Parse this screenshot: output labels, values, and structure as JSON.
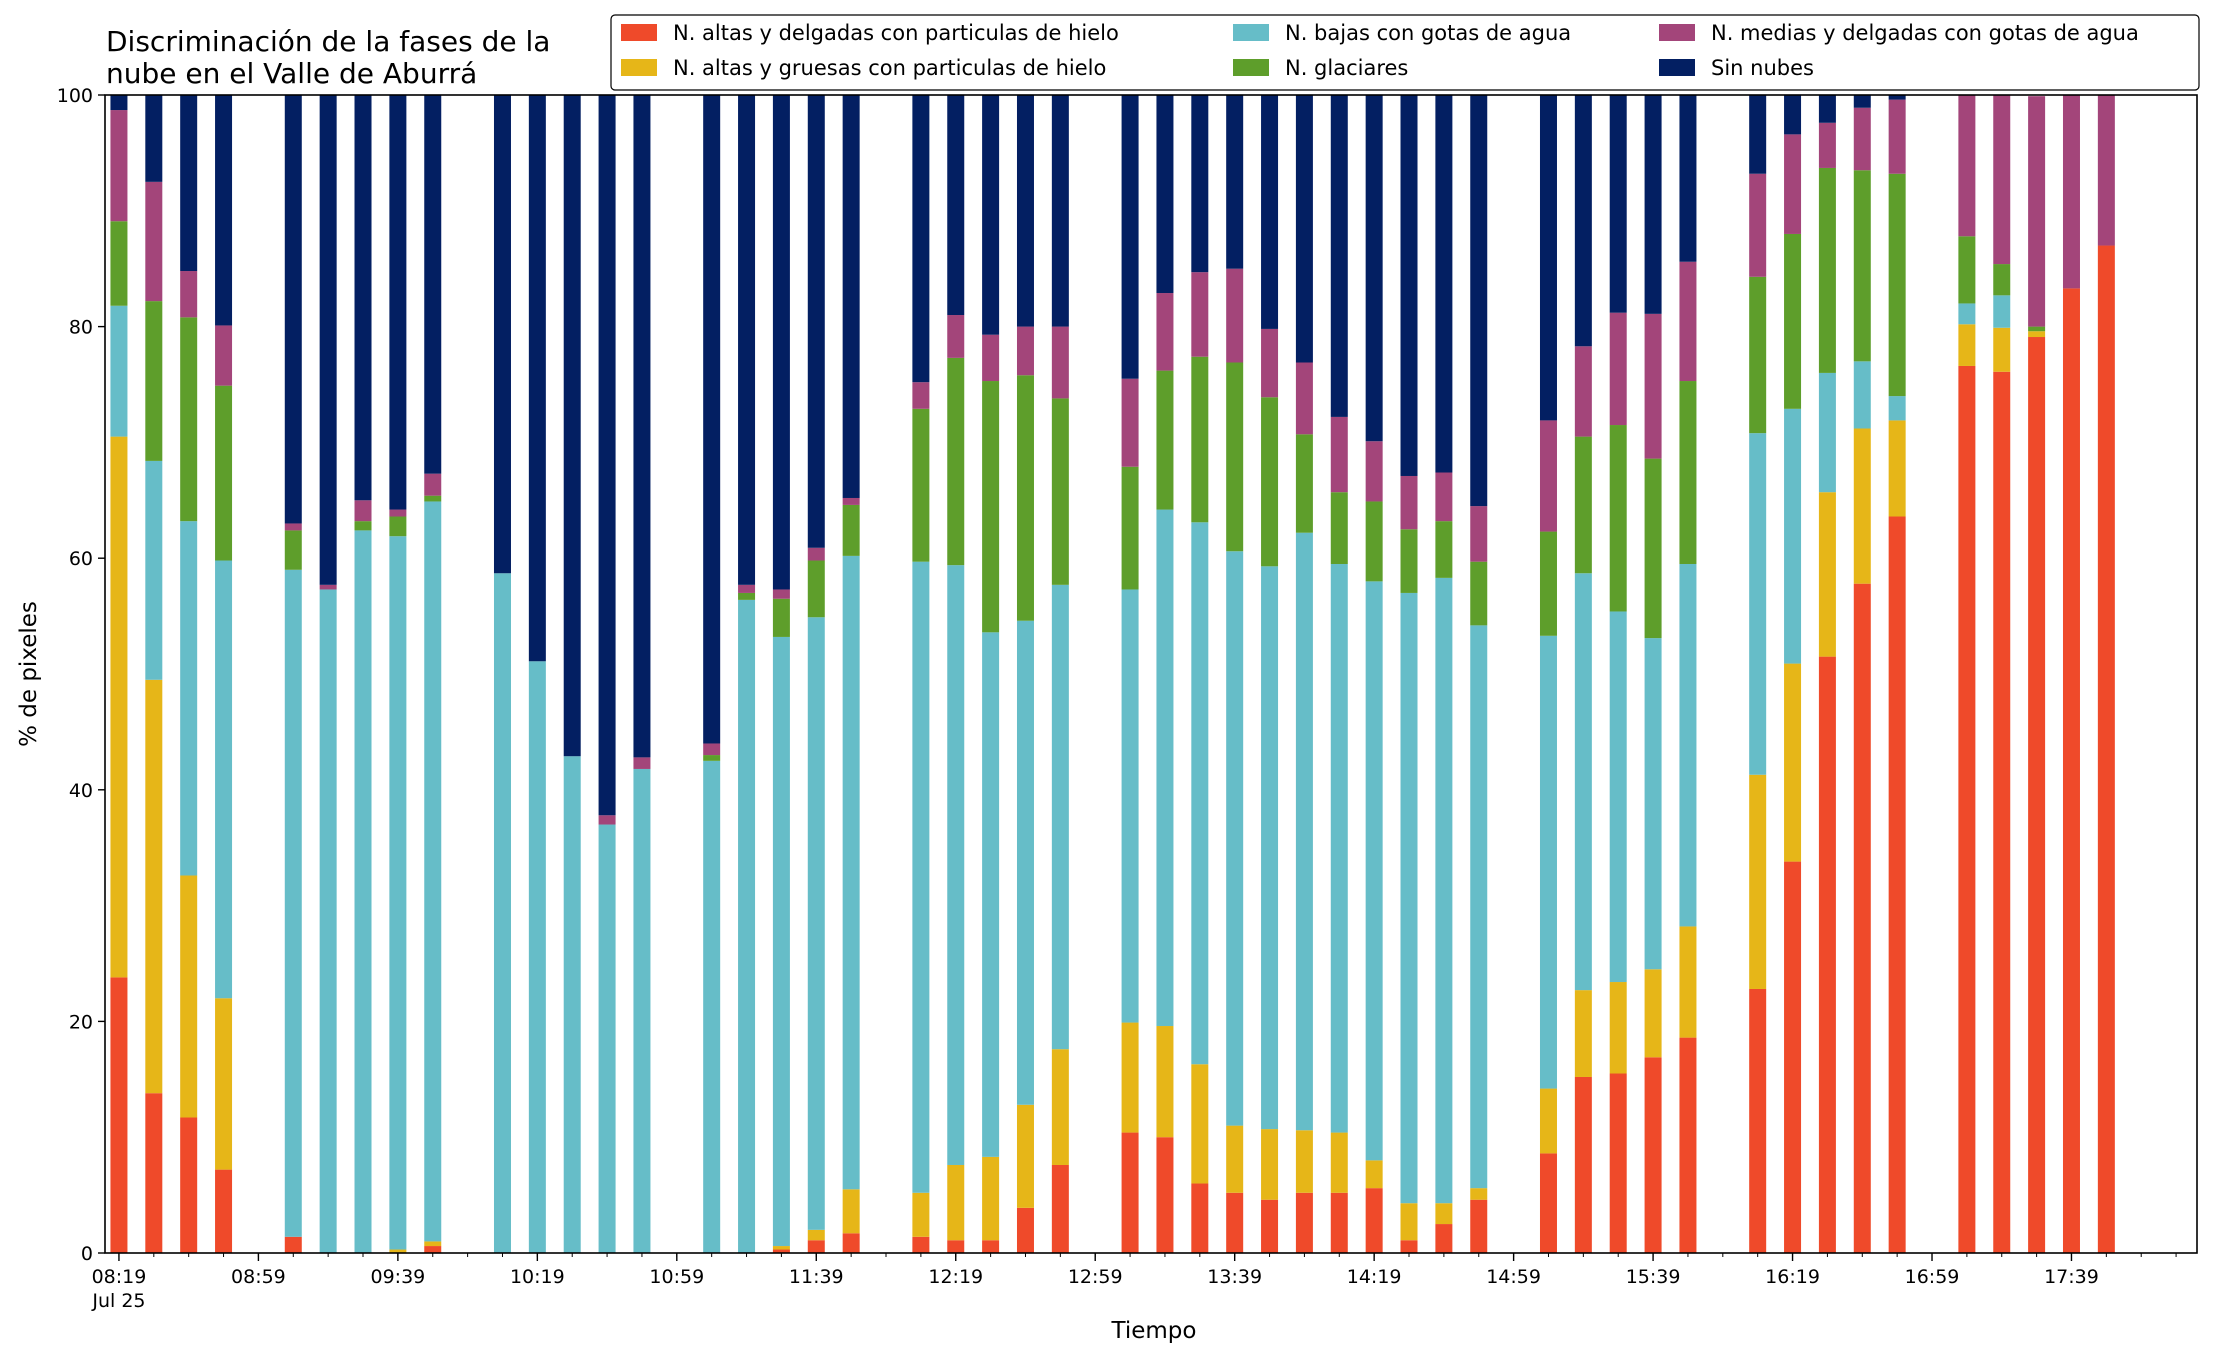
{
  "chart_data": {
    "type": "bar",
    "stacked": true,
    "title_lines": [
      "Discriminación de la fases de la",
      "nube en el Valle de Aburrá"
    ],
    "xlabel": "Tiempo",
    "ylabel": "% de pixeles",
    "ylim": [
      0,
      100
    ],
    "yticks": [
      0,
      20,
      40,
      60,
      80,
      100
    ],
    "x_range": [
      "08:15",
      "18:15"
    ],
    "xticks": [
      "08:19",
      "08:59",
      "09:39",
      "10:19",
      "10:59",
      "11:39",
      "12:19",
      "12:59",
      "13:39",
      "14:19",
      "14:59",
      "15:39",
      "16:19",
      "16:59",
      "17:39"
    ],
    "xtick_sublabel": "Jul 25",
    "legend_position": "top-right",
    "legend_columns": 3,
    "grid": false,
    "times": [
      "08:19",
      "08:29",
      "08:39",
      "08:49",
      "09:09",
      "09:19",
      "09:29",
      "09:39",
      "09:49",
      "10:09",
      "10:19",
      "10:29",
      "10:39",
      "10:49",
      "11:09",
      "11:19",
      "11:29",
      "11:39",
      "11:49",
      "12:09",
      "12:19",
      "12:29",
      "12:39",
      "12:49",
      "13:09",
      "13:19",
      "13:29",
      "13:39",
      "13:49",
      "13:59",
      "14:09",
      "14:19",
      "14:29",
      "14:39",
      "14:49",
      "15:09",
      "15:19",
      "15:29",
      "15:39",
      "15:49",
      "16:09",
      "16:19",
      "16:29",
      "16:39",
      "16:49",
      "17:09",
      "17:19",
      "17:29",
      "17:39",
      "17:49"
    ],
    "series": [
      {
        "name": "N. altas y delgadas con particulas de hielo",
        "color": "#ef4a2a",
        "values": [
          23.8,
          13.8,
          11.7,
          7.2,
          1.4,
          0,
          0,
          0,
          0.6,
          0,
          0,
          0,
          0,
          0,
          0,
          0,
          0.3,
          1.1,
          1.7,
          1.4,
          1.1,
          1.1,
          3.9,
          7.6,
          10.4,
          10.0,
          6.0,
          5.2,
          4.6,
          5.2,
          5.2,
          5.6,
          1.1,
          2.5,
          4.6,
          8.6,
          15.2,
          15.5,
          16.9,
          18.6,
          22.8,
          33.8,
          51.5,
          57.8,
          63.6,
          76.6,
          76.1,
          79.1,
          83.3,
          87.0
        ]
      },
      {
        "name": "N. altas y gruesas con particulas de hielo",
        "color": "#e6b618",
        "values": [
          46.7,
          35.7,
          20.9,
          14.8,
          0,
          0,
          0,
          0.3,
          0.4,
          0,
          0,
          0,
          0,
          0,
          0,
          0,
          0.3,
          0.9,
          3.8,
          3.8,
          6.5,
          7.2,
          8.9,
          10.0,
          9.5,
          9.6,
          10.3,
          5.8,
          6.1,
          5.4,
          5.2,
          2.4,
          3.2,
          1.8,
          1.0,
          5.6,
          7.5,
          7.9,
          7.6,
          9.6,
          18.5,
          17.1,
          14.2,
          13.4,
          8.3,
          3.6,
          3.8,
          0.5,
          0,
          0
        ]
      },
      {
        "name": "N. bajas con gotas de agua",
        "color": "#66bdc8",
        "values": [
          11.3,
          18.9,
          30.6,
          37.8,
          57.6,
          57.3,
          62.4,
          61.6,
          63.9,
          58.7,
          51.1,
          42.9,
          37.0,
          41.8,
          42.5,
          56.4,
          52.6,
          52.9,
          54.7,
          54.5,
          51.8,
          45.3,
          41.8,
          40.1,
          37.4,
          44.6,
          46.8,
          49.6,
          48.6,
          51.6,
          49.1,
          50.0,
          52.7,
          54.0,
          48.6,
          39.1,
          36.0,
          32.0,
          28.6,
          31.3,
          29.5,
          22.0,
          10.3,
          5.8,
          2.1,
          1.8,
          2.8,
          0,
          0,
          0
        ]
      },
      {
        "name": "N. glaciares",
        "color": "#5e9e2b",
        "values": [
          7.3,
          13.8,
          17.6,
          15.1,
          3.4,
          0,
          0.8,
          1.7,
          0.5,
          0,
          0,
          0,
          0,
          0,
          0.5,
          0.6,
          3.3,
          4.9,
          4.4,
          13.2,
          17.9,
          21.7,
          21.2,
          16.1,
          10.6,
          12.0,
          14.3,
          16.3,
          14.6,
          8.5,
          6.2,
          6.9,
          5.5,
          4.9,
          5.5,
          9.0,
          11.8,
          16.1,
          15.5,
          15.8,
          13.5,
          15.1,
          17.7,
          16.5,
          19.2,
          5.8,
          2.7,
          0.4,
          0,
          0
        ]
      },
      {
        "name": "N. medias y delgadas con gotas de agua",
        "color": "#a3457a",
        "values": [
          9.6,
          10.3,
          4.0,
          5.2,
          0.6,
          0.4,
          1.8,
          0.6,
          1.9,
          0,
          0,
          0,
          0.8,
          1.0,
          1.0,
          0.7,
          0.8,
          1.1,
          0.6,
          2.3,
          3.7,
          4.0,
          4.2,
          6.2,
          7.6,
          6.7,
          7.3,
          8.1,
          5.9,
          6.2,
          6.5,
          5.2,
          4.6,
          4.2,
          4.8,
          9.6,
          7.8,
          9.7,
          12.5,
          10.3,
          8.9,
          8.6,
          3.9,
          5.4,
          6.4,
          12.2,
          14.6,
          19.9,
          16.7,
          13.0
        ]
      },
      {
        "name": "Sin nubes",
        "color": "#031f62",
        "values": [
          1.3,
          7.5,
          15.2,
          19.9,
          37.0,
          42.3,
          35.0,
          35.8,
          32.7,
          41.3,
          48.9,
          57.1,
          62.2,
          57.2,
          56.0,
          42.3,
          42.7,
          39.1,
          34.8,
          24.8,
          19.0,
          20.7,
          20.0,
          20.0,
          24.5,
          17.1,
          15.3,
          15.0,
          20.2,
          23.1,
          27.8,
          29.9,
          32.9,
          32.6,
          35.5,
          28.1,
          21.7,
          18.8,
          18.9,
          14.4,
          6.8,
          3.4,
          2.4,
          1.1,
          0.4,
          0,
          0,
          0,
          0,
          0
        ]
      }
    ]
  }
}
